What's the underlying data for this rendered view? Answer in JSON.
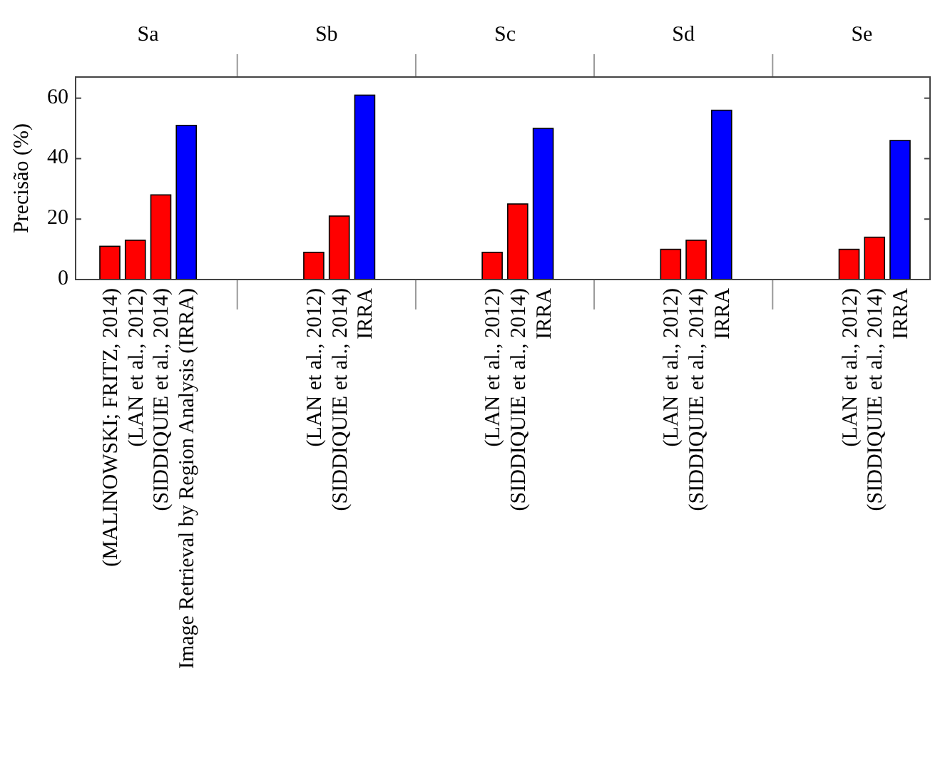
{
  "chart_data": {
    "type": "bar",
    "ylabel": "Precisão (%)",
    "categories": [
      "(MALINOWSKI; FRITZ, 2014)",
      "(LAN et al., 2012)",
      "(SIDDIQUIE et al., 2014)",
      "Image Retrieval by Region Analysis (IRRA)",
      null,
      null,
      null,
      null,
      "(LAN et al., 2012)",
      "(SIDDIQUIE et al., 2014)",
      "IRRA",
      null,
      null,
      null,
      null,
      "(LAN et al., 2012)",
      "(SIDDIQUIE et al., 2014)",
      "IRRA",
      null,
      null,
      null,
      null,
      "(LAN et al., 2012)",
      "(SIDDIQUIE et al., 2014)",
      "IRRA",
      null,
      null,
      null,
      null,
      "(LAN et al., 2012)",
      "(SIDDIQUIE et al., 2014)",
      "IRRA"
    ],
    "values": [
      11,
      13,
      28,
      51,
      null,
      null,
      null,
      null,
      9,
      21,
      61,
      null,
      null,
      null,
      null,
      9,
      25,
      50,
      null,
      null,
      null,
      null,
      10,
      13,
      56,
      null,
      null,
      null,
      null,
      10,
      14,
      46
    ],
    "colors": [
      "#ff0000",
      "#ff0000",
      "#ff0000",
      "#0000ff",
      null,
      null,
      null,
      null,
      "#ff0000",
      "#ff0000",
      "#0000ff",
      null,
      null,
      null,
      null,
      "#ff0000",
      "#ff0000",
      "#0000ff",
      null,
      null,
      null,
      null,
      "#ff0000",
      "#ff0000",
      "#0000ff",
      null,
      null,
      null,
      null,
      "#ff0000",
      "#ff0000",
      "#0000ff"
    ],
    "annotations": [
      "Sa",
      "Sb",
      "Sc",
      "Sd",
      "Se"
    ],
    "ylim": [
      0,
      67
    ],
    "yticks": [
      0,
      20,
      40,
      60
    ],
    "grid": false
  }
}
